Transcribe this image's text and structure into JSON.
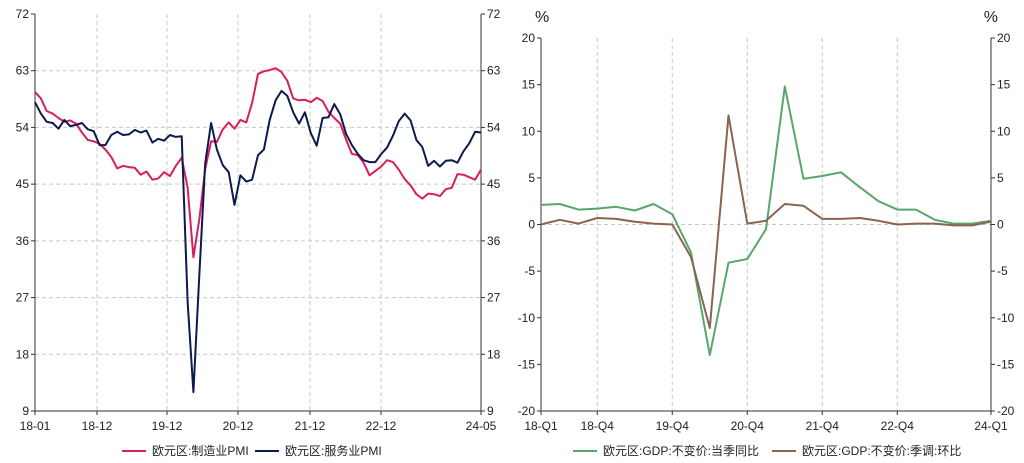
{
  "colors": {
    "mfg_pmi": "#d81e5b",
    "svc_pmi": "#0d1a4d",
    "gdp_yoy": "#5aa56e",
    "gdp_qoq": "#8b6450",
    "grid": "#c8c8c8",
    "axis": "#333333"
  },
  "chart_data": [
    {
      "type": "line",
      "x_ticks": [
        "18-01",
        "18-12",
        "19-12",
        "20-12",
        "21-12",
        "22-12",
        "24-05"
      ],
      "ylim": [
        9,
        72
      ],
      "y_ticks": [
        "9",
        "18",
        "27",
        "36",
        "45",
        "54",
        "63",
        "72"
      ],
      "series": [
        {
          "name": "欧元区:制造业PMI",
          "values": [
            59.6,
            58.6,
            56.6,
            56.2,
            55.5,
            54.9,
            55.1,
            54.6,
            53.2,
            52.0,
            51.8,
            51.4,
            50.5,
            49.3,
            47.5,
            47.9,
            47.7,
            47.6,
            46.5,
            47.0,
            45.7,
            45.9,
            46.9,
            46.3,
            47.9,
            49.2,
            44.5,
            33.4,
            39.4,
            47.4,
            51.8,
            51.7,
            53.7,
            54.8,
            53.8,
            55.2,
            54.8,
            57.9,
            62.5,
            62.9,
            63.1,
            63.4,
            62.8,
            61.4,
            58.6,
            58.3,
            58.4,
            58.0,
            58.7,
            58.2,
            56.5,
            55.5,
            54.6,
            52.1,
            49.8,
            49.6,
            48.4,
            46.4,
            47.1,
            47.8,
            48.8,
            48.5,
            47.3,
            45.8,
            44.8,
            43.4,
            42.7,
            43.5,
            43.4,
            43.1,
            44.2,
            44.4,
            46.6,
            46.5,
            46.1,
            45.7,
            47.3
          ]
        },
        {
          "name": "欧元区:服务业PMI",
          "values": [
            58.0,
            56.2,
            54.9,
            54.7,
            53.8,
            55.2,
            54.2,
            54.4,
            54.7,
            53.7,
            53.4,
            51.2,
            51.2,
            52.8,
            53.3,
            52.8,
            52.9,
            53.6,
            53.2,
            53.5,
            51.6,
            52.2,
            51.9,
            52.8,
            52.5,
            52.6,
            26.4,
            12.0,
            30.5,
            48.3,
            54.7,
            50.5,
            48.0,
            46.9,
            41.7,
            46.4,
            45.4,
            45.7,
            49.6,
            50.5,
            55.2,
            58.3,
            59.8,
            59.0,
            56.4,
            54.6,
            56.4,
            53.1,
            51.1,
            55.5,
            55.6,
            57.7,
            56.1,
            53.0,
            51.2,
            49.8,
            48.8,
            48.5,
            48.5,
            49.8,
            50.8,
            52.7,
            55.0,
            56.2,
            55.1,
            52.0,
            50.9,
            47.9,
            48.7,
            47.8,
            48.7,
            48.8,
            48.4,
            50.2,
            51.5,
            53.3,
            53.2
          ]
        }
      ]
    },
    {
      "type": "line",
      "x_ticks": [
        "18-Q1",
        "18-Q4",
        "19-Q4",
        "20-Q4",
        "21-Q4",
        "22-Q4",
        "24-Q1"
      ],
      "ylim": [
        -20,
        20
      ],
      "y_ticks": [
        "-20",
        "-15",
        "-10",
        "-5",
        "0",
        "5",
        "10",
        "15",
        "20"
      ],
      "unit_left": "%",
      "unit_right": "%",
      "series": [
        {
          "name": "欧元区:GDP:不变价:当季同比",
          "values": [
            2.1,
            2.2,
            1.6,
            1.7,
            1.9,
            1.5,
            2.2,
            1.1,
            -3.0,
            -14.0,
            -4.1,
            -3.7,
            -0.5,
            14.8,
            4.9,
            5.2,
            5.6,
            4.0,
            2.5,
            1.6,
            1.6,
            0.5,
            0.1,
            0.1,
            0.4
          ]
        },
        {
          "name": "欧元区:GDP:不变价:季调:环比",
          "values": [
            0.0,
            0.5,
            0.1,
            0.7,
            0.6,
            0.3,
            0.1,
            0.0,
            -3.5,
            -11.1,
            11.7,
            0.1,
            0.4,
            2.2,
            2.0,
            0.6,
            0.6,
            0.7,
            0.4,
            0.0,
            0.1,
            0.1,
            -0.1,
            -0.1,
            0.3
          ]
        }
      ]
    }
  ]
}
